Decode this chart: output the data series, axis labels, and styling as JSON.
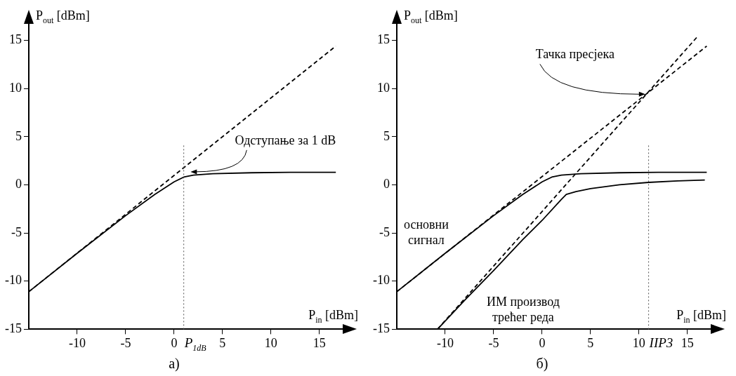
{
  "chart_data": [
    {
      "type": "line",
      "title": "а)",
      "xlabel": "P$_{in}$ [dBm]",
      "ylabel": "P$_{out}$ [dBm]",
      "xlim": [
        -15,
        17.7
      ],
      "ylim": [
        -15,
        17
      ],
      "xticks": [
        -10,
        -5,
        0,
        5,
        10,
        15
      ],
      "yticks": [
        -15,
        -10,
        -5,
        0,
        5,
        10,
        15
      ],
      "series": [
        {
          "color": "#000000",
          "line_style": "solid",
          "x": [
            -15,
            -10,
            -5,
            -2,
            0,
            1,
            2,
            4,
            8,
            12,
            16.7
          ],
          "values": [
            -11.1,
            -7.1,
            -3.2,
            -1,
            0.3,
            0.8,
            1,
            1.15,
            1.25,
            1.3,
            1.3
          ]
        },
        {
          "color": "#000000",
          "line_style": "dashed",
          "x": [
            -15,
            16.7
          ],
          "values": [
            -11.1,
            14.4
          ]
        }
      ],
      "ref_lines": [
        {
          "axis": "x",
          "value": 1,
          "label": "P$_{1dB}$",
          "line_style": "dotted"
        }
      ],
      "annotations": [
        {
          "text": "Одступање за 1 dB",
          "x": 1.7,
          "y": 1.35
        }
      ]
    },
    {
      "type": "line",
      "title": "б)",
      "xlabel": "P$_{in}$ [dBm]",
      "ylabel": "P$_{out}$ [dBm]",
      "xlim": [
        -15,
        17.7
      ],
      "ylim": [
        -15,
        17
      ],
      "xticks": [
        -10,
        -5,
        0,
        5,
        10,
        15
      ],
      "yticks": [
        -15,
        -10,
        -5,
        0,
        5,
        10,
        15
      ],
      "series": [
        {
          "name": "основни сигнал",
          "color": "#000000",
          "line_style": "solid",
          "x": [
            -15,
            -10,
            -5,
            -2,
            0,
            1,
            2,
            4,
            8,
            12,
            17
          ],
          "values": [
            -11.1,
            -7.1,
            -3.2,
            -1,
            0.3,
            0.8,
            1,
            1.15,
            1.25,
            1.3,
            1.3
          ]
        },
        {
          "name": "ИМ производ трећег реда",
          "color": "#000000",
          "line_style": "solid",
          "x": [
            -10.8,
            -8,
            -5,
            -2,
            0,
            2,
            2.5,
            3.5,
            5,
            8,
            11,
            14,
            16.8
          ],
          "values": [
            -15,
            -12,
            -8.9,
            -5.7,
            -3.7,
            -1.5,
            -1,
            -0.7,
            -0.4,
            0,
            0.25,
            0.4,
            0.5
          ]
        },
        {
          "color": "#000000",
          "line_style": "dashed",
          "x": [
            -15,
            17
          ],
          "values": [
            -11.1,
            14.4
          ]
        },
        {
          "color": "#000000",
          "line_style": "dashed",
          "x": [
            -10.8,
            16.1
          ],
          "values": [
            -15,
            15.45
          ]
        }
      ],
      "ref_lines": [
        {
          "axis": "x",
          "value": 11,
          "label": "IIP3",
          "line_style": "dotted"
        }
      ],
      "annotations": [
        {
          "text": "Тачка пресјека",
          "x": 10.8,
          "y": 9.4
        }
      ]
    }
  ]
}
